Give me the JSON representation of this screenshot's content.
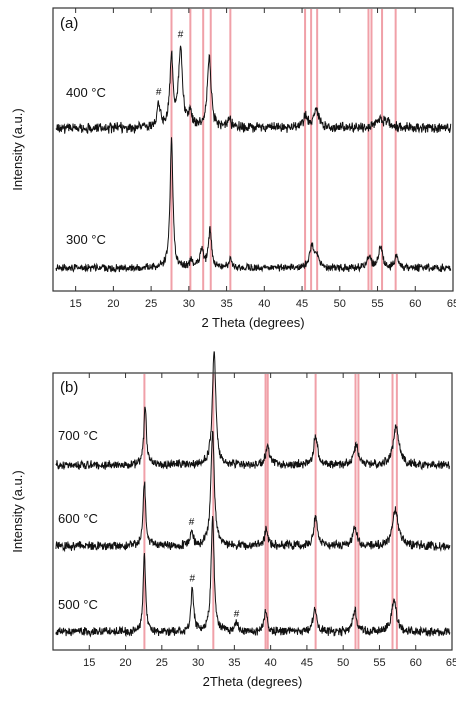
{
  "chart_data": [
    {
      "type": "line",
      "panel_label": "(a)",
      "xlabel": "2 Theta (degrees)",
      "ylabel": "Intensity (a.u.)",
      "xlim": [
        12,
        65
      ],
      "xticks": [
        15,
        20,
        25,
        30,
        35,
        40,
        45,
        50,
        55,
        60,
        65
      ],
      "reference_lines": [
        27.7,
        30.2,
        31.9,
        32.9,
        35.5,
        45.4,
        46.2,
        47.0,
        53.8,
        54.2,
        55.6,
        57.4
      ],
      "reference_line_color": "#f0a0a8",
      "series": [
        {
          "label": "400 °C",
          "peaks": [
            {
              "x": 26.0,
              "h": 0.22,
              "w": 0.25
            },
            {
              "x": 27.7,
              "h": 0.62,
              "w": 0.25
            },
            {
              "x": 28.9,
              "h": 0.72,
              "w": 0.3
            },
            {
              "x": 30.2,
              "h": 0.12,
              "w": 0.25
            },
            {
              "x": 32.7,
              "h": 0.62,
              "w": 0.3
            },
            {
              "x": 35.4,
              "h": 0.08,
              "w": 0.25
            },
            {
              "x": 45.5,
              "h": 0.1,
              "w": 0.35
            },
            {
              "x": 46.9,
              "h": 0.17,
              "w": 0.35
            },
            {
              "x": 55.3,
              "h": 0.07,
              "w": 0.5
            },
            {
              "x": 56.3,
              "h": 0.05,
              "w": 0.5
            }
          ],
          "annotations": [
            {
              "x": 26.0,
              "text": "#"
            },
            {
              "x": 28.9,
              "text": "#"
            }
          ]
        },
        {
          "label": "300 °C",
          "peaks": [
            {
              "x": 27.7,
              "h": 1.0,
              "w": 0.22
            },
            {
              "x": 30.3,
              "h": 0.06,
              "w": 0.25
            },
            {
              "x": 31.7,
              "h": 0.14,
              "w": 0.25
            },
            {
              "x": 32.8,
              "h": 0.28,
              "w": 0.25
            },
            {
              "x": 35.5,
              "h": 0.07,
              "w": 0.25
            },
            {
              "x": 46.3,
              "h": 0.17,
              "w": 0.35
            },
            {
              "x": 47.0,
              "h": 0.09,
              "w": 0.3
            },
            {
              "x": 53.9,
              "h": 0.09,
              "w": 0.3
            },
            {
              "x": 55.4,
              "h": 0.16,
              "w": 0.3
            },
            {
              "x": 57.5,
              "h": 0.09,
              "w": 0.3
            }
          ],
          "annotations": []
        }
      ]
    },
    {
      "type": "line",
      "panel_label": "(b)",
      "xlabel": "2Theta (degrees)",
      "ylabel": "Intensity (a.u.)",
      "xlim": [
        10,
        65
      ],
      "xticks": [
        15,
        20,
        25,
        30,
        35,
        40,
        45,
        50,
        55,
        60,
        65
      ],
      "reference_lines": [
        22.6,
        32.1,
        39.3,
        39.6,
        46.2,
        51.7,
        52.1,
        56.8,
        57.4
      ],
      "reference_line_color": "#f0a0a8",
      "series": [
        {
          "label": "700 °C",
          "peaks": [
            {
              "x": 22.7,
              "h": 0.5,
              "w": 0.22
            },
            {
              "x": 32.2,
              "h": 1.0,
              "w": 0.28
            },
            {
              "x": 39.6,
              "h": 0.18,
              "w": 0.3
            },
            {
              "x": 46.2,
              "h": 0.26,
              "w": 0.3
            },
            {
              "x": 51.8,
              "h": 0.17,
              "w": 0.35
            },
            {
              "x": 57.3,
              "h": 0.34,
              "w": 0.45
            }
          ],
          "annotations": []
        },
        {
          "label": "600 °C",
          "peaks": [
            {
              "x": 22.6,
              "h": 0.55,
              "w": 0.22
            },
            {
              "x": 29.1,
              "h": 0.12,
              "w": 0.25
            },
            {
              "x": 32.0,
              "h": 1.0,
              "w": 0.28
            },
            {
              "x": 39.4,
              "h": 0.14,
              "w": 0.3
            },
            {
              "x": 46.2,
              "h": 0.26,
              "w": 0.3
            },
            {
              "x": 51.6,
              "h": 0.16,
              "w": 0.35
            },
            {
              "x": 57.2,
              "h": 0.32,
              "w": 0.45
            }
          ],
          "annotations": [
            {
              "x": 29.1,
              "text": "#"
            }
          ]
        },
        {
          "label": "500 °C",
          "peaks": [
            {
              "x": 22.6,
              "h": 0.68,
              "w": 0.2
            },
            {
              "x": 29.2,
              "h": 0.38,
              "w": 0.22
            },
            {
              "x": 32.0,
              "h": 1.0,
              "w": 0.25
            },
            {
              "x": 35.3,
              "h": 0.07,
              "w": 0.25
            },
            {
              "x": 39.3,
              "h": 0.2,
              "w": 0.25
            },
            {
              "x": 46.1,
              "h": 0.22,
              "w": 0.3
            },
            {
              "x": 51.6,
              "h": 0.2,
              "w": 0.3
            },
            {
              "x": 57.0,
              "h": 0.28,
              "w": 0.4
            }
          ],
          "annotations": [
            {
              "x": 29.2,
              "text": "#"
            },
            {
              "x": 35.3,
              "text": "#"
            }
          ]
        }
      ]
    }
  ]
}
